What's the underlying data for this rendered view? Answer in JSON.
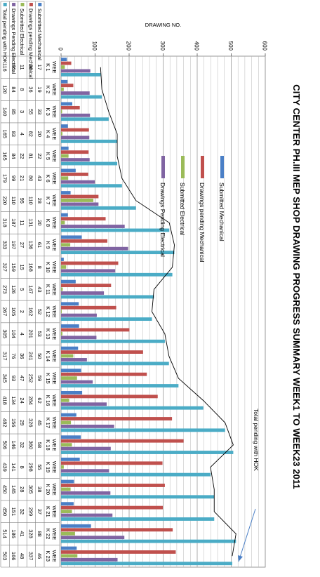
{
  "chart_data": {
    "type": "bar",
    "title": "CITY CENTER PH.III MEP SHOP DRAWING PROGRESS SUMMARY  WEEK1 TO WEEK23 2011",
    "ylabel": "DRAWING NO.",
    "xlabel": "",
    "ylim": [
      0,
      600
    ],
    "yticks": [
      0,
      100,
      200,
      300,
      400,
      500,
      600
    ],
    "grid": true,
    "legend_position": "inside-left",
    "annotation": "Total pending with HOK",
    "categories": [
      "WEE K 1",
      "WEE K 2",
      "WEE K 3",
      "WEE K 4",
      "WEE K 5",
      "WEE K 6",
      "WEE K 7",
      "WEE K 8",
      "WEE K 9",
      "WEE K 10",
      "WEE K 11",
      "WEE K 12",
      "WEE K 13",
      "WEE K 14",
      "WEE K 15",
      "WEE K 16",
      "WEE K 17",
      "WEE K 18",
      "WEE K 19",
      "WEE K 20",
      "WEE K 21",
      "WEE K 22",
      "WEE K 23"
    ],
    "series": [
      {
        "name": "Submitted Mechanical",
        "color": "#4a7fc6",
        "values": [
          17,
          19,
          33,
          20,
          22,
          43,
          28,
          20,
          61,
          8,
          43,
          52,
          53,
          50,
          59,
          62,
          45,
          58,
          55,
          38,
          37,
          88,
          46
        ]
      },
      {
        "name": "Drawings pending Mechanical",
        "color": "#c0504d",
        "values": [
          30,
          36,
          55,
          82,
          81,
          80,
          110,
          131,
          136,
          168,
          147,
          162,
          201,
          241,
          252,
          284,
          326,
          360,
          298,
          305,
          299,
          328,
          337
        ]
      },
      {
        "name": "Submitted Electrical",
        "color": "#9bbb59",
        "values": [
          11,
          8,
          3,
          4,
          22,
          21,
          95,
          11,
          27,
          15,
          5,
          2,
          4,
          36,
          47,
          24,
          29,
          32,
          8,
          28,
          32,
          41,
          48
        ]
      },
      {
        "name": "Drawings Pending Electrical",
        "color": "#8064a2",
        "values": [
          86,
          84,
          85,
          83,
          84,
          99,
          110,
          187,
          197,
          159,
          126,
          105,
          104,
          76,
          93,
          134,
          156,
          146,
          141,
          145,
          151,
          186,
          166
        ]
      },
      {
        "name": "Total pending with HOK",
        "color": "#4bacc6",
        "values": [
          116,
          120,
          140,
          165,
          165,
          179,
          220,
          318,
          333,
          327,
          273,
          267,
          305,
          317,
          345,
          418,
          482,
          506,
          439,
          450,
          450,
          514,
          503
        ]
      }
    ]
  }
}
